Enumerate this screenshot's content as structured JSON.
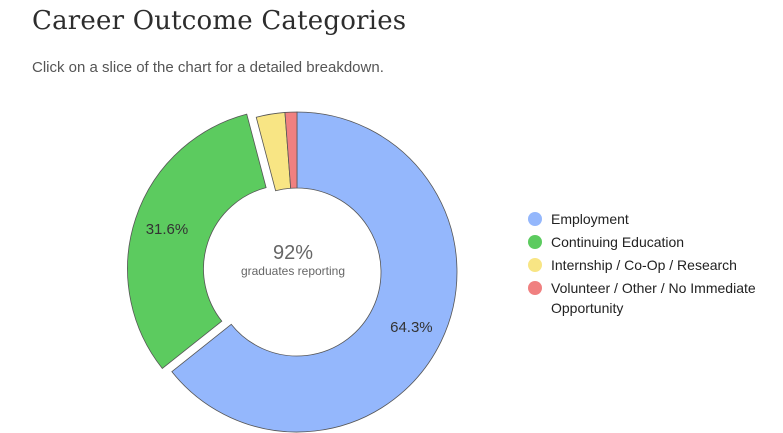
{
  "header": {
    "title": "Career Outcome Categories",
    "subtitle": "Click on a slice of the chart for a detailed breakdown."
  },
  "center": {
    "value": "92%",
    "label": "graduates reporting"
  },
  "chart_data": {
    "type": "pie",
    "categories": [
      "Employment",
      "Continuing Education",
      "Internship / Co-Op / Research",
      "Volunteer / Other / No Immediate Opportunity"
    ],
    "values": [
      64.3,
      31.6,
      2.9,
      1.2
    ],
    "labels": [
      "64.3%",
      "31.6%",
      "",
      ""
    ],
    "colors": [
      "#94b7fc",
      "#5ccb5f",
      "#f8e584",
      "#f08080"
    ],
    "legend": "right",
    "exploded": "Continuing Education"
  }
}
